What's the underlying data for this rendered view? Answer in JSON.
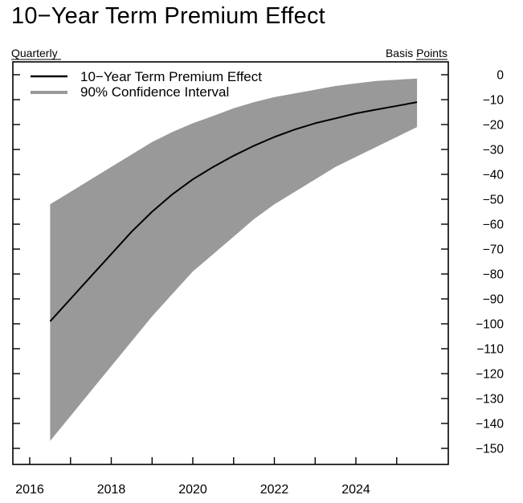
{
  "chart_data": {
    "type": "line",
    "title": "10−Year Term Premium Effect",
    "left_label": "Quarterly",
    "right_label": "Basis Points",
    "x_ticks": [
      "2016",
      "2018",
      "2020",
      "2022",
      "2024"
    ],
    "y_ticks": [
      "0",
      "−10",
      "−20",
      "−30",
      "−40",
      "−50",
      "−60",
      "−70",
      "−80",
      "−90",
      "−100",
      "−110",
      "−120",
      "−130",
      "−140",
      "−150"
    ],
    "xlim": [
      2015.6,
      2025.9
    ],
    "ylim": [
      -155,
      3
    ],
    "legend_position": "top-left",
    "colors": {
      "line": "#000000",
      "band": "#999999"
    },
    "series": [
      {
        "name": "10−Year Term Premium Effect",
        "x": [
          2016.5,
          2017.0,
          2017.5,
          2018.0,
          2018.5,
          2019.0,
          2019.5,
          2020.0,
          2020.5,
          2021.0,
          2021.5,
          2022.0,
          2022.5,
          2023.0,
          2023.5,
          2024.0,
          2024.5,
          2025.0,
          2025.5
        ],
        "y": [
          -99,
          -90,
          -81,
          -72,
          -63,
          -55,
          -48,
          -42,
          -37,
          -32.5,
          -28.5,
          -25,
          -22,
          -19.5,
          -17.5,
          -15.5,
          -14,
          -12.5,
          -11
        ]
      },
      {
        "name": "90% Confidence Interval",
        "x": [
          2016.5,
          2017.0,
          2017.5,
          2018.0,
          2018.5,
          2019.0,
          2019.5,
          2020.0,
          2020.5,
          2021.0,
          2021.5,
          2022.0,
          2022.5,
          2023.0,
          2023.5,
          2024.0,
          2024.5,
          2025.0,
          2025.5
        ],
        "upper": [
          -52,
          -47,
          -42,
          -37,
          -32,
          -27,
          -23,
          -19.5,
          -16.5,
          -13.5,
          -11,
          -9,
          -7.5,
          -6,
          -4.5,
          -3.5,
          -2.5,
          -2,
          -1.5
        ],
        "lower": [
          -147,
          -137,
          -127,
          -117,
          -107,
          -97,
          -88,
          -79,
          -72,
          -65,
          -58,
          -52,
          -47,
          -42,
          -37,
          -33,
          -29,
          -25,
          -21
        ]
      }
    ]
  }
}
